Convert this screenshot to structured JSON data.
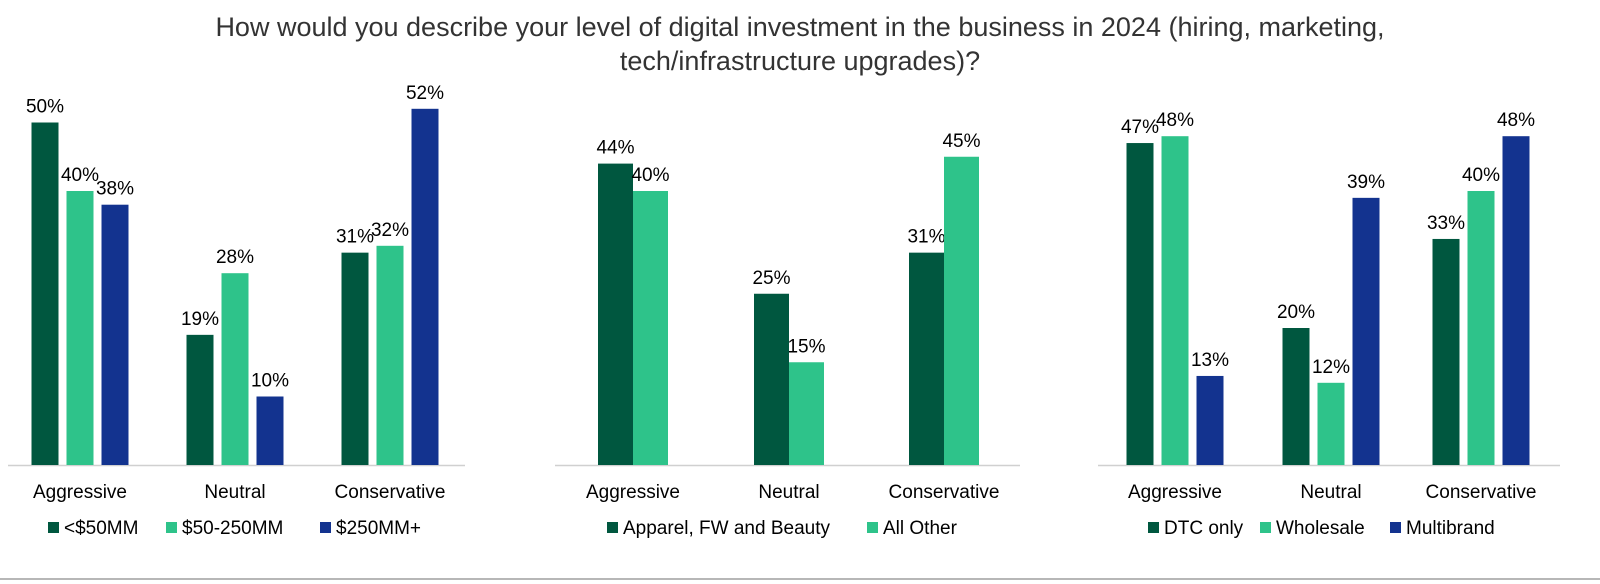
{
  "title_lines": [
    "How would you describe your level of digital investment in the business in 2024 (hiring, marketing,",
    "tech/infrastructure upgrades)?"
  ],
  "colors": {
    "dark_green": "#00573f",
    "light_green": "#2ec38a",
    "navy": "#13338f"
  },
  "chart_data": [
    {
      "type": "bar",
      "categories": [
        "Aggressive",
        "Neutral",
        "Conservative"
      ],
      "series": [
        {
          "name": "<$50MM",
          "values": [
            50,
            19,
            31
          ],
          "labels": [
            "50%",
            "19%",
            "31%"
          ]
        },
        {
          "name": "$50-250MM",
          "values": [
            40,
            28,
            32
          ],
          "labels": [
            "40%",
            "28%",
            "32%"
          ]
        },
        {
          "name": "$250MM+",
          "values": [
            38,
            10,
            52
          ],
          "labels": [
            "38%",
            "10%",
            "52%"
          ]
        }
      ],
      "ylim": [
        0,
        55
      ],
      "legend": "bottom",
      "grid": false
    },
    {
      "type": "bar",
      "categories": [
        "Aggressive",
        "Neutral",
        "Conservative"
      ],
      "series": [
        {
          "name": "Apparel, FW and Beauty",
          "values": [
            44,
            25,
            31
          ],
          "labels": [
            "44%",
            "25%",
            "31%"
          ]
        },
        {
          "name": "All Other",
          "values": [
            40,
            15,
            45
          ],
          "labels": [
            "40%",
            "15%",
            "45%"
          ]
        }
      ],
      "ylim": [
        0,
        55
      ],
      "legend": "bottom",
      "grid": false
    },
    {
      "type": "bar",
      "categories": [
        "Aggressive",
        "Neutral",
        "Conservative"
      ],
      "series": [
        {
          "name": "DTC only",
          "values": [
            47,
            20,
            33
          ],
          "labels": [
            "47%",
            "20%",
            "33%"
          ]
        },
        {
          "name": "Wholesale",
          "values": [
            48,
            12,
            40
          ],
          "labels": [
            "48%",
            "12%",
            "40%"
          ]
        },
        {
          "name": "Multibrand",
          "values": [
            13,
            39,
            48
          ],
          "labels": [
            "13%",
            "39%",
            "48%"
          ]
        }
      ],
      "ylim": [
        0,
        55
      ],
      "legend": "bottom",
      "grid": false
    }
  ]
}
